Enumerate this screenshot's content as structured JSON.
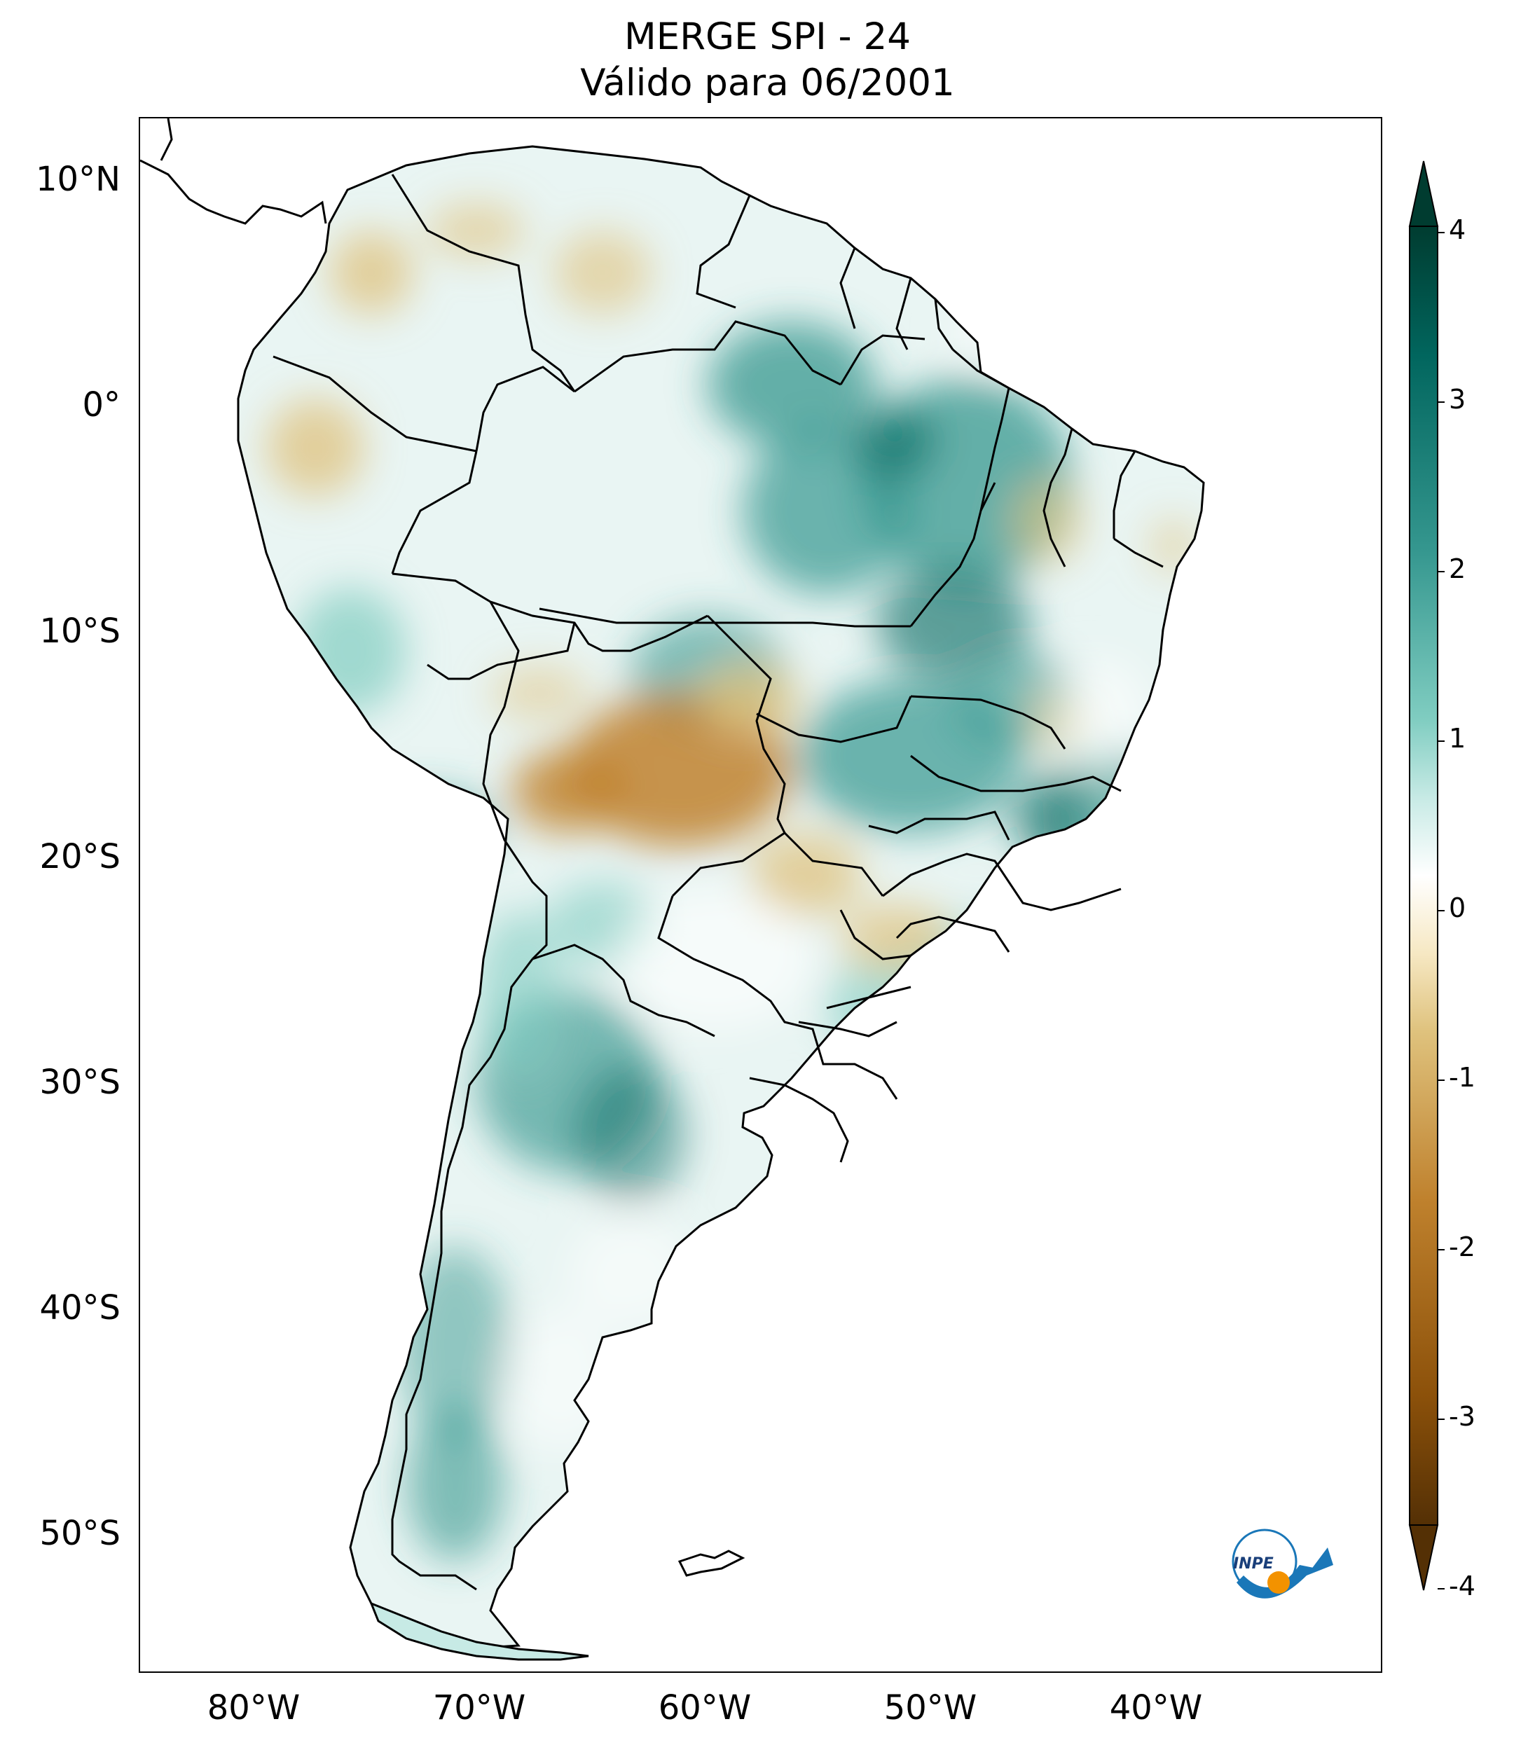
{
  "title": {
    "line1": "MERGE   SPI - 24",
    "line2": "Válido para 06/2001"
  },
  "map": {
    "lat_ticks": [
      "10°N",
      "0°",
      "10°S",
      "20°S",
      "30°S",
      "40°S",
      "50°S"
    ],
    "lon_ticks": [
      "80°W",
      "70°W",
      "60°W",
      "50°W",
      "40°W"
    ],
    "extent": {
      "lon": [
        -85,
        -30
      ],
      "lat": [
        -56,
        13
      ]
    }
  },
  "colorbar": {
    "ticks": [
      "4",
      "3",
      "2",
      "1",
      "0",
      "-1",
      "-2",
      "-3",
      "-4"
    ],
    "range": [
      -4,
      4
    ],
    "colors": [
      "#543005",
      "#8c510a",
      "#bf812d",
      "#dfc27d",
      "#f6e8c3",
      "#ffffff",
      "#c7eae5",
      "#80cdc1",
      "#35978f",
      "#01665e",
      "#003c30"
    ]
  },
  "logo": {
    "text": "INPE",
    "accent": "#f39200",
    "brand": "#1a77b8"
  },
  "colors": {
    "wet": "#35978f",
    "dry": "#bf812d",
    "neutral": "#ffffff",
    "border": "#000000"
  }
}
